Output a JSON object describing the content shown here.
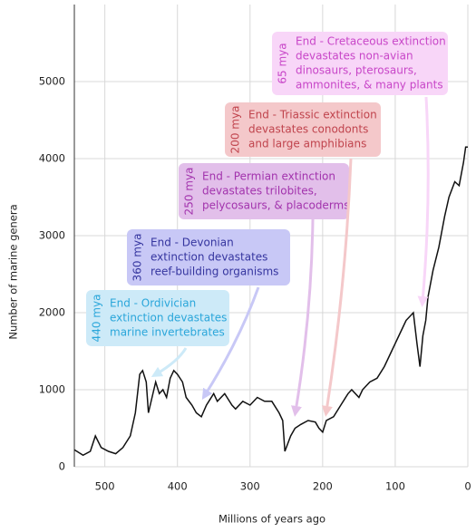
{
  "chart_data": {
    "type": "line",
    "x_label": "Millions of years ago",
    "y_label": "Number of marine genera",
    "xlim": [
      542,
      0
    ],
    "xticks": [
      500,
      400,
      300,
      200,
      100,
      0
    ],
    "ylim": [
      0,
      6000
    ],
    "yticks": [
      0,
      1000,
      2000,
      3000,
      4000,
      5000
    ],
    "grid": true,
    "series": [
      {
        "color": "#111111",
        "x": [
          542,
          530,
          520,
          513,
          505,
          495,
          485,
          475,
          465,
          458,
          452,
          448,
          443,
          440,
          435,
          430,
          425,
          420,
          415,
          410,
          405,
          400,
          393,
          388,
          380,
          374,
          367,
          360,
          350,
          345,
          335,
          325,
          320,
          310,
          300,
          290,
          280,
          270,
          260,
          255,
          252,
          248,
          244,
          238,
          230,
          220,
          210,
          205,
          200,
          195,
          185,
          175,
          165,
          160,
          150,
          145,
          135,
          125,
          115,
          105,
          95,
          85,
          75,
          70,
          66,
          62,
          58,
          55,
          48,
          40,
          32,
          26,
          18,
          12,
          6,
          3,
          0
        ],
        "values": [
          220,
          150,
          200,
          400,
          250,
          200,
          170,
          250,
          400,
          700,
          1200,
          1250,
          1100,
          700,
          900,
          1100,
          950,
          1000,
          900,
          1150,
          1250,
          1200,
          1100,
          900,
          800,
          700,
          650,
          800,
          950,
          850,
          950,
          800,
          750,
          850,
          800,
          900,
          850,
          850,
          700,
          600,
          200,
          300,
          400,
          500,
          550,
          600,
          580,
          500,
          450,
          600,
          650,
          800,
          950,
          1000,
          900,
          1000,
          1100,
          1150,
          1300,
          1500,
          1700,
          1900,
          2000,
          1600,
          1300,
          1700,
          1900,
          2200,
          2550,
          2850,
          3250,
          3500,
          3700,
          3650,
          3950,
          4150,
          4150
        ]
      }
    ],
    "annotations": [
      {
        "label": "440 mya",
        "text": [
          "End - Ordivician",
          "extinction devastates",
          "marine invertebrates"
        ],
        "color": "#2aa6da",
        "fill": "#cdeaf8"
      },
      {
        "label": "360 mya",
        "text": [
          "End - Devonian",
          "extinction devastates",
          "reef-building organisms"
        ],
        "color": "#35359f",
        "fill": "#c8c8f6"
      },
      {
        "label": "250 mya",
        "text": [
          "End - Permian extinction",
          "devastates trilobites,",
          "pelycosaurs, & placoderms"
        ],
        "color": "#a233ad",
        "fill": "#e2bfea"
      },
      {
        "label": "200 mya",
        "text": [
          "End - Triassic extinction",
          "devastates conodonts",
          "and large amphibians"
        ],
        "color": "#c0444d",
        "fill": "#f4c8ca"
      },
      {
        "label": "65 mya",
        "text": [
          "End - Cretaceous extinction",
          "devastates non-avian",
          "dinosaurs, pterosaurs,",
          "ammonites, & many plants"
        ],
        "color": "#c846c8",
        "fill": "#f8d6f8"
      }
    ]
  }
}
